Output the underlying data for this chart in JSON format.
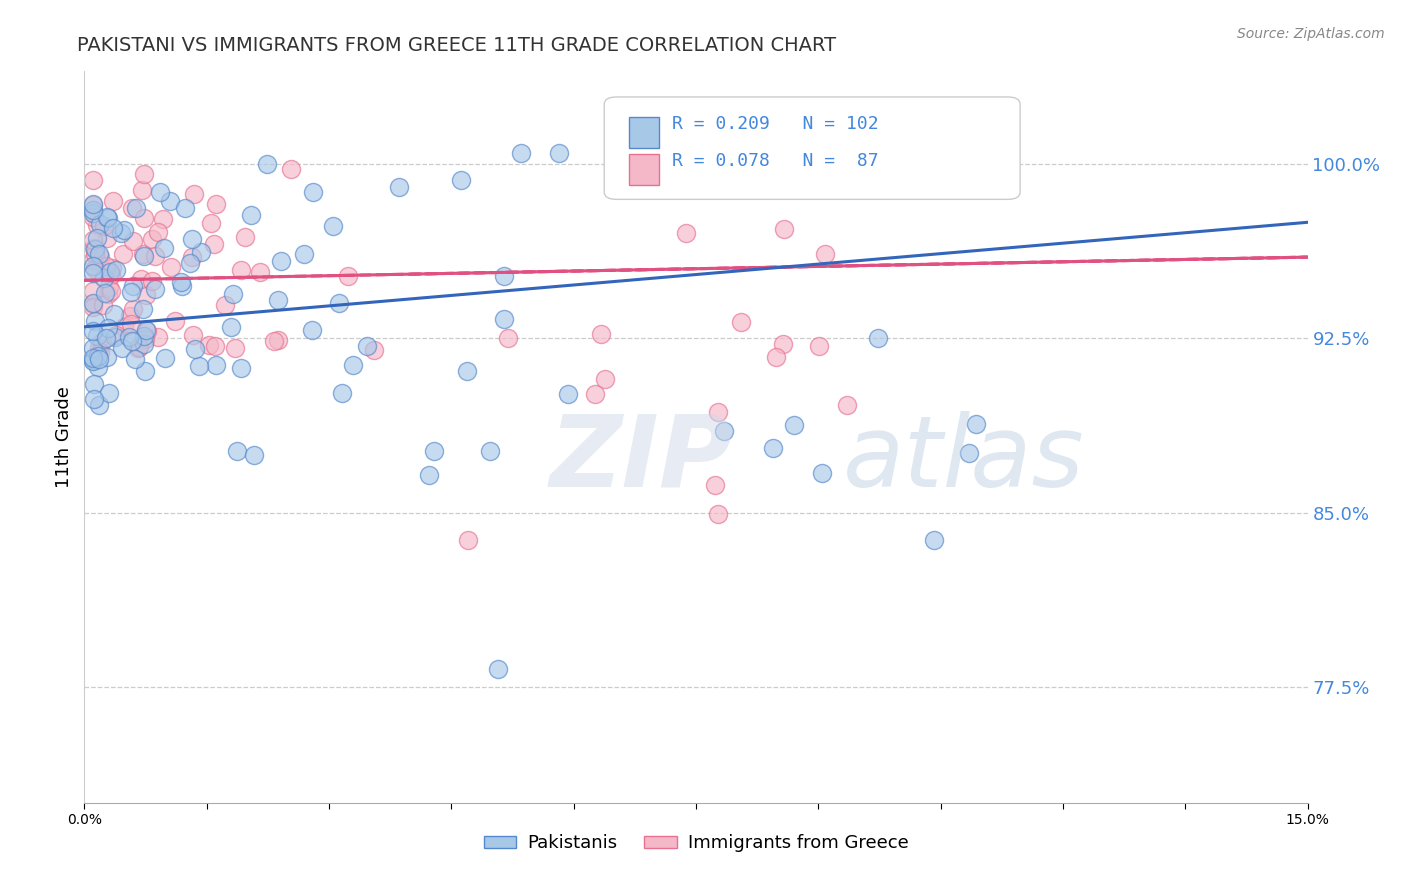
{
  "title": "PAKISTANI VS IMMIGRANTS FROM GREECE 11TH GRADE CORRELATION CHART",
  "source": "Source: ZipAtlas.com",
  "ylabel": "11th Grade",
  "y_ticks": [
    0.775,
    0.85,
    0.925,
    1.0
  ],
  "y_tick_labels": [
    "77.5%",
    "85.0%",
    "92.5%",
    "100.0%"
  ],
  "xlim": [
    0.0,
    0.15
  ],
  "ylim": [
    0.725,
    1.04
  ],
  "legend_r1": "R = 0.209",
  "legend_n1": "N = 102",
  "legend_r2": "R = 0.078",
  "legend_n2": "N =  87",
  "color_blue": "#a8c8e8",
  "color_pink": "#f4b8c8",
  "color_blue_dark": "#5588cc",
  "color_pink_dark": "#e87090",
  "color_blue_line": "#3366bb",
  "color_pink_line": "#e05080",
  "color_axis_text": "#4488dd",
  "watermark_zip": "ZIP",
  "watermark_atlas": "atlas",
  "legend_label1": "Pakistanis",
  "legend_label2": "Immigrants from Greece"
}
